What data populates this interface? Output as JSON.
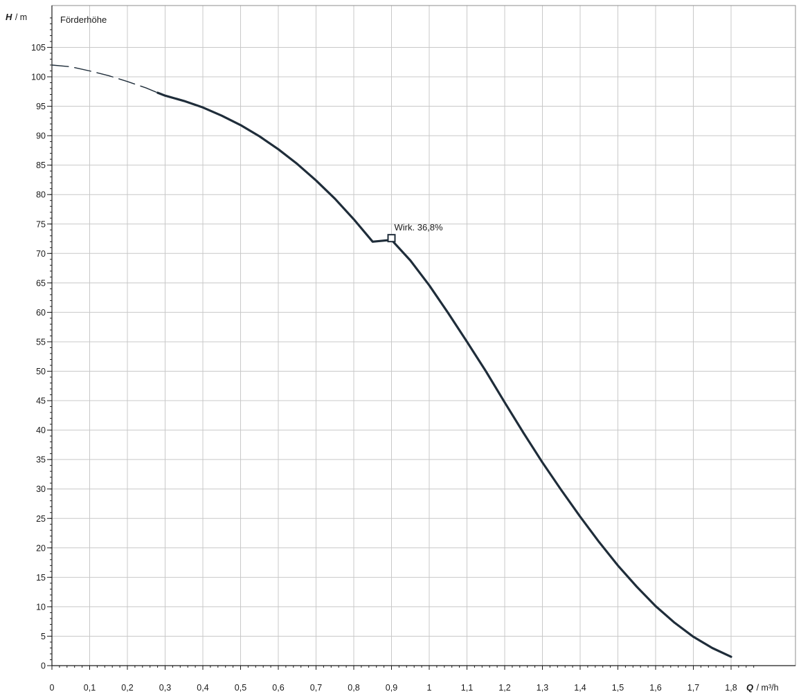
{
  "chart_data": {
    "type": "line",
    "title": "Förderhöhe",
    "y_axis": {
      "variable": "H",
      "unit": "m",
      "ylim": [
        0,
        110
      ],
      "major_step": 5,
      "minor_step": 1,
      "tick_labels": [
        "0",
        "5",
        "10",
        "15",
        "20",
        "25",
        "30",
        "35",
        "40",
        "45",
        "50",
        "55",
        "60",
        "65",
        "70",
        "75",
        "80",
        "85",
        "90",
        "95",
        "100",
        "105"
      ]
    },
    "x_axis": {
      "variable": "Q",
      "unit": "m³/h",
      "xlim": [
        0,
        1.85
      ],
      "major_step": 0.1,
      "minor_step": 0.02,
      "tick_labels": [
        "0",
        "0,1",
        "0,2",
        "0,3",
        "0,4",
        "0,5",
        "0,6",
        "0,7",
        "0,8",
        "0,9",
        "1",
        "1,1",
        "1,2",
        "1,3",
        "1,4",
        "1,5",
        "1,6",
        "1,7",
        "1,8"
      ]
    },
    "grid": true,
    "series": [
      {
        "line_style": "dashed",
        "color": "#1f2d3a",
        "x": [
          0,
          0.05,
          0.1,
          0.15,
          0.2,
          0.25,
          0.28
        ],
        "y": [
          102.0,
          101.7,
          101.0,
          100.2,
          99.2,
          98.1,
          97.3
        ]
      },
      {
        "line_style": "solid",
        "color": "#1f2d3a",
        "x": [
          0.28,
          0.3,
          0.35,
          0.4,
          0.45,
          0.5,
          0.55,
          0.6,
          0.65,
          0.7,
          0.75,
          0.8,
          0.85,
          0.9,
          0.95,
          1.0,
          1.05,
          1.1,
          1.15,
          1.2,
          1.25,
          1.3,
          1.35,
          1.4,
          1.45,
          1.5,
          1.55,
          1.6,
          1.65,
          1.7,
          1.75,
          1.8
        ],
        "y": [
          97.3,
          96.8,
          95.9,
          94.8,
          93.4,
          91.8,
          89.9,
          87.7,
          85.2,
          82.4,
          79.3,
          75.8,
          72.0,
          72.3,
          68.8,
          64.6,
          59.9,
          55.0,
          50.0,
          44.7,
          39.5,
          34.5,
          29.8,
          25.3,
          21.0,
          17.0,
          13.4,
          10.1,
          7.3,
          4.9,
          3.0,
          1.5
        ]
      }
    ],
    "operating_point": {
      "x": 0.9,
      "y": 72.6,
      "label": "Wirk.  36,8%"
    },
    "legend": "none"
  }
}
